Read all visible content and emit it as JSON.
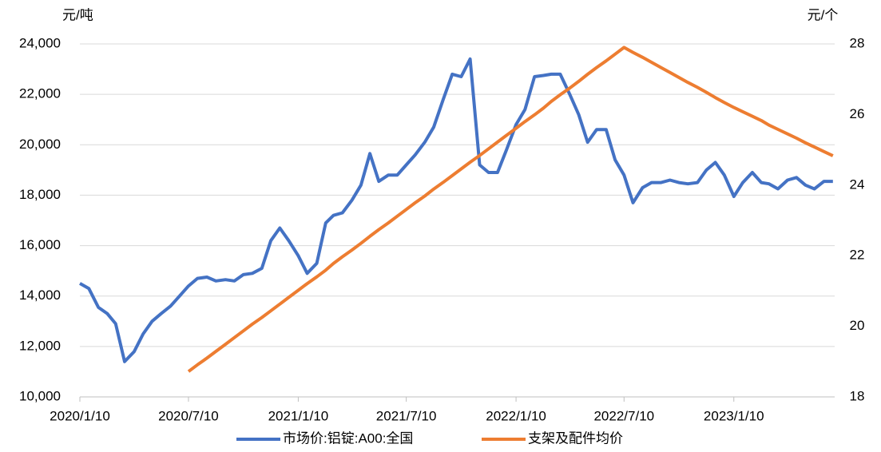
{
  "chart_data": {
    "type": "line",
    "y_unit": "元/吨",
    "y2_unit": "元/个",
    "x": [
      "2020/1/10",
      "2020/1/25",
      "2020/2/10",
      "2020/2/25",
      "2020/3/10",
      "2020/3/25",
      "2020/4/10",
      "2020/4/25",
      "2020/5/10",
      "2020/5/25",
      "2020/6/10",
      "2020/6/25",
      "2020/7/10",
      "2020/7/25",
      "2020/8/10",
      "2020/8/25",
      "2020/9/10",
      "2020/9/25",
      "2020/10/10",
      "2020/10/25",
      "2020/11/10",
      "2020/11/25",
      "2020/12/10",
      "2020/12/25",
      "2021/1/10",
      "2021/1/25",
      "2021/2/10",
      "2021/2/25",
      "2021/3/10",
      "2021/3/25",
      "2021/4/10",
      "2021/4/25",
      "2021/5/10",
      "2021/5/25",
      "2021/6/10",
      "2021/6/25",
      "2021/7/10",
      "2021/7/25",
      "2021/8/10",
      "2021/8/25",
      "2021/9/10",
      "2021/9/25",
      "2021/10/10",
      "2021/10/25",
      "2021/11/10",
      "2021/11/25",
      "2021/12/10",
      "2021/12/25",
      "2022/1/10",
      "2022/1/25",
      "2022/2/10",
      "2022/2/25",
      "2022/3/10",
      "2022/3/25",
      "2022/4/10",
      "2022/4/25",
      "2022/5/10",
      "2022/5/25",
      "2022/6/10",
      "2022/6/25",
      "2022/7/10",
      "2022/7/25",
      "2022/8/10",
      "2022/8/25",
      "2022/9/10",
      "2022/9/25",
      "2022/10/10",
      "2022/10/25",
      "2022/11/10",
      "2022/11/25",
      "2022/12/10",
      "2022/12/25",
      "2023/1/10",
      "2023/1/25",
      "2023/2/10",
      "2023/2/25",
      "2023/3/10",
      "2023/3/25",
      "2023/4/10",
      "2023/4/25",
      "2023/5/10",
      "2023/5/25",
      "2023/6/10",
      "2023/6/25"
    ],
    "series": [
      {
        "name": "市场价:铝锭:A00:全国",
        "color": "#4472c4",
        "axis": "y",
        "values": [
          14500,
          14300,
          13550,
          13300,
          12900,
          11400,
          11800,
          12500,
          13000,
          13300,
          13600,
          14000,
          14400,
          14700,
          14750,
          14600,
          14650,
          14600,
          14850,
          14900,
          15100,
          16200,
          16700,
          16200,
          15600,
          14900,
          15300,
          16900,
          17200,
          17300,
          17800,
          18400,
          19650,
          18550,
          18800,
          18800,
          19200,
          19600,
          20100,
          20700,
          21800,
          22800,
          22700,
          23400,
          19200,
          18900,
          18900,
          19800,
          20800,
          21400,
          22700,
          22750,
          22800,
          22800,
          22000,
          21200,
          20100,
          20600,
          20600,
          19400,
          18800,
          17700,
          18300,
          18500,
          18500,
          18600,
          18500,
          18450,
          18500,
          19000,
          19300,
          18800,
          17950,
          18500,
          18900,
          18500,
          18450,
          18250,
          18600,
          18700,
          18400,
          18250,
          18550,
          18550
        ]
      },
      {
        "name": "支架及配件均价",
        "color": "#ed7d31",
        "axis": "y2",
        "values": [
          null,
          null,
          null,
          null,
          null,
          null,
          null,
          null,
          null,
          null,
          null,
          null,
          18.72,
          18.91,
          19.1,
          19.29,
          19.49,
          19.68,
          19.87,
          20.06,
          20.25,
          20.44,
          20.63,
          20.82,
          21.02,
          21.21,
          21.4,
          21.59,
          21.78,
          21.97,
          22.16,
          22.35,
          22.55,
          22.74,
          22.93,
          23.12,
          23.31,
          23.5,
          23.69,
          23.89,
          24.08,
          24.27,
          24.46,
          24.65,
          24.84,
          25.03,
          25.22,
          25.41,
          25.61,
          25.8,
          25.99,
          26.18,
          26.37,
          26.56,
          26.75,
          26.94,
          27.14,
          27.33,
          27.52,
          27.71,
          27.9,
          27.76,
          27.62,
          27.48,
          27.33,
          27.19,
          27.05,
          26.91,
          26.77,
          26.63,
          26.48,
          26.34,
          26.2,
          26.08,
          25.95,
          25.83,
          25.7,
          25.58,
          25.45,
          25.33,
          25.2,
          25.08,
          24.95,
          24.83
        ]
      }
    ],
    "xlim": [
      "2020/1/10",
      "2023/6/28"
    ],
    "xticks": [
      "2020/1/10",
      "2020/7/10",
      "2021/1/10",
      "2021/7/10",
      "2022/1/10",
      "2022/7/10",
      "2023/1/10"
    ],
    "ylim": [
      10000,
      24000
    ],
    "yticks": [
      {
        "value": 10000,
        "label": "10,000"
      },
      {
        "value": 12000,
        "label": "12,000"
      },
      {
        "value": 14000,
        "label": "14,000"
      },
      {
        "value": 16000,
        "label": "16,000"
      },
      {
        "value": 18000,
        "label": "18,000"
      },
      {
        "value": 20000,
        "label": "20,000"
      },
      {
        "value": 22000,
        "label": "22,000"
      },
      {
        "value": 24000,
        "label": "24,000"
      }
    ],
    "y2lim": [
      18,
      28
    ],
    "y2ticks": [
      18,
      20,
      22,
      24,
      26,
      28
    ],
    "grid": true,
    "legend": "bottom"
  }
}
